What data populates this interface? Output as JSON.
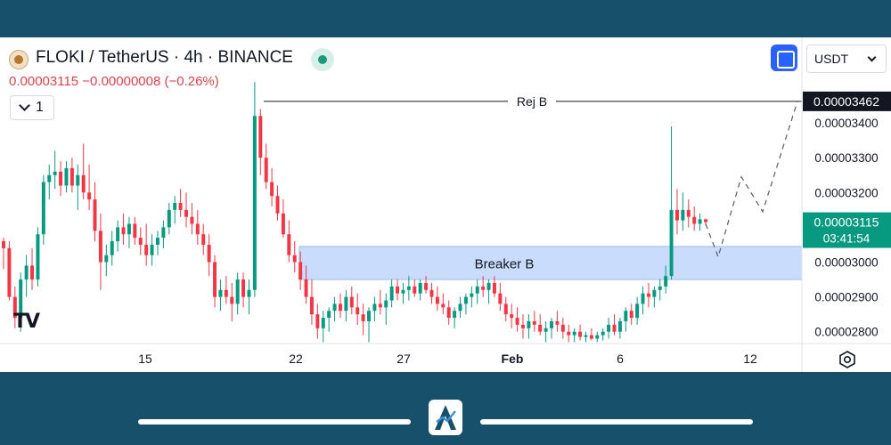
{
  "header": {
    "symbol": "FLOKI / TetherUS · 4h · BINANCE",
    "quote_line": "0.00003115 −0.00000008 (−0.26%)",
    "interval_label": "1",
    "currency": "USDT"
  },
  "colors": {
    "up": "#089981",
    "down": "#f23645",
    "zone_fill": "#c9dcfb",
    "zone_border": "#9cbcf2",
    "last_price_bg": "#089981",
    "rej_label_bg": "#131722",
    "frame_bg": "#17506a"
  },
  "icons": [
    "coin-logo-icon",
    "status-dot-icon",
    "chevron-down-icon",
    "fullscreen-icon",
    "tradingview-logo-icon",
    "settings-icon",
    "app-logo-icon"
  ],
  "chart_data": {
    "type": "candlestick",
    "y_axis": {
      "ticks": [
        3.4e-05,
        3.3e-05,
        3.2e-05,
        3e-05,
        2.9e-05,
        2.8e-05
      ],
      "tick_labels": [
        "0.00003400",
        "0.00003300",
        "0.00003200",
        "0.00003000",
        "0.00002900",
        "0.00002800"
      ],
      "range": [
        2.766e-05,
        3.518e-05
      ]
    },
    "x_axis": {
      "tick_labels": [
        "15",
        "22",
        "27",
        "Feb",
        "6",
        "12"
      ]
    },
    "last_price": {
      "value": 3.115e-05,
      "label": "0.00003115",
      "countdown": "03:41:54"
    },
    "rejection_level": {
      "name": "Rej B",
      "value": 3.462e-05,
      "label": "0.00003462"
    },
    "breaker_zone": {
      "name": "Breaker B",
      "low": 2.95e-05,
      "high": 3.045e-05
    },
    "projection": [
      3.11e-05,
      3.015e-05,
      3.245e-05,
      3.145e-05,
      3.462e-05
    ],
    "candles": [
      {
        "o": 3.06e-05,
        "h": 3.07e-05,
        "l": 2.98e-05,
        "c": 3.04e-05
      },
      {
        "o": 3.04e-05,
        "h": 3.06e-05,
        "l": 2.89e-05,
        "c": 2.9e-05
      },
      {
        "o": 2.9e-05,
        "h": 2.93e-05,
        "l": 2.81e-05,
        "c": 2.84e-05
      },
      {
        "o": 2.84e-05,
        "h": 2.97e-05,
        "l": 2.8e-05,
        "c": 2.95e-05
      },
      {
        "o": 2.95e-05,
        "h": 3.02e-05,
        "l": 2.9e-05,
        "c": 2.99e-05
      },
      {
        "o": 2.99e-05,
        "h": 3.04e-05,
        "l": 2.92e-05,
        "c": 2.95e-05
      },
      {
        "o": 2.95e-05,
        "h": 3.1e-05,
        "l": 2.93e-05,
        "c": 3.08e-05
      },
      {
        "o": 3.08e-05,
        "h": 3.25e-05,
        "l": 3.05e-05,
        "c": 3.23e-05
      },
      {
        "o": 3.23e-05,
        "h": 3.28e-05,
        "l": 3.18e-05,
        "c": 3.25e-05
      },
      {
        "o": 3.25e-05,
        "h": 3.32e-05,
        "l": 3.21e-05,
        "c": 3.26e-05
      },
      {
        "o": 3.26e-05,
        "h": 3.29e-05,
        "l": 3.19e-05,
        "c": 3.22e-05
      },
      {
        "o": 3.22e-05,
        "h": 3.29e-05,
        "l": 3.2e-05,
        "c": 3.27e-05
      },
      {
        "o": 3.27e-05,
        "h": 3.3e-05,
        "l": 3.2e-05,
        "c": 3.22e-05
      },
      {
        "o": 3.22e-05,
        "h": 3.28e-05,
        "l": 3.15e-05,
        "c": 3.25e-05
      },
      {
        "o": 3.25e-05,
        "h": 3.34e-05,
        "l": 3.18e-05,
        "c": 3.2e-05
      },
      {
        "o": 3.2e-05,
        "h": 3.28e-05,
        "l": 3.15e-05,
        "c": 3.18e-05
      },
      {
        "o": 3.18e-05,
        "h": 3.23e-05,
        "l": 3.06e-05,
        "c": 3.09e-05
      },
      {
        "o": 3.09e-05,
        "h": 3.14e-05,
        "l": 2.92e-05,
        "c": 3e-05
      },
      {
        "o": 3e-05,
        "h": 3.05e-05,
        "l": 2.96e-05,
        "c": 3.02e-05
      },
      {
        "o": 3.02e-05,
        "h": 3.09e-05,
        "l": 2.99e-05,
        "c": 3.06e-05
      },
      {
        "o": 3.06e-05,
        "h": 3.12e-05,
        "l": 3.03e-05,
        "c": 3.1e-05
      },
      {
        "o": 3.1e-05,
        "h": 3.14e-05,
        "l": 3.05e-05,
        "c": 3.08e-05
      },
      {
        "o": 3.08e-05,
        "h": 3.13e-05,
        "l": 3.04e-05,
        "c": 3.11e-05
      },
      {
        "o": 3.11e-05,
        "h": 3.13e-05,
        "l": 3.05e-05,
        "c": 3.07e-05
      },
      {
        "o": 3.07e-05,
        "h": 3.1e-05,
        "l": 3.02e-05,
        "c": 3.05e-05
      },
      {
        "o": 3.05e-05,
        "h": 3.11e-05,
        "l": 2.99e-05,
        "c": 3.02e-05
      },
      {
        "o": 3.02e-05,
        "h": 3.08e-05,
        "l": 2.99e-05,
        "c": 3.05e-05
      },
      {
        "o": 3.05e-05,
        "h": 3.09e-05,
        "l": 3.02e-05,
        "c": 3.07e-05
      },
      {
        "o": 3.07e-05,
        "h": 3.12e-05,
        "l": 3.04e-05,
        "c": 3.1e-05
      },
      {
        "o": 3.1e-05,
        "h": 3.17e-05,
        "l": 3.08e-05,
        "c": 3.15e-05
      },
      {
        "o": 3.15e-05,
        "h": 3.19e-05,
        "l": 3.11e-05,
        "c": 3.17e-05
      },
      {
        "o": 3.17e-05,
        "h": 3.21e-05,
        "l": 3.13e-05,
        "c": 3.15e-05
      },
      {
        "o": 3.15e-05,
        "h": 3.2e-05,
        "l": 3.1e-05,
        "c": 3.13e-05
      },
      {
        "o": 3.13e-05,
        "h": 3.17e-05,
        "l": 3.08e-05,
        "c": 3.11e-05
      },
      {
        "o": 3.11e-05,
        "h": 3.15e-05,
        "l": 3.05e-05,
        "c": 3.08e-05
      },
      {
        "o": 3.08e-05,
        "h": 3.11e-05,
        "l": 3.02e-05,
        "c": 3.05e-05
      },
      {
        "o": 3.05e-05,
        "h": 3.08e-05,
        "l": 2.96e-05,
        "c": 3e-05
      },
      {
        "o": 3e-05,
        "h": 3.02e-05,
        "l": 2.87e-05,
        "c": 2.9e-05
      },
      {
        "o": 2.9e-05,
        "h": 2.95e-05,
        "l": 2.86e-05,
        "c": 2.92e-05
      },
      {
        "o": 2.92e-05,
        "h": 2.96e-05,
        "l": 2.88e-05,
        "c": 2.9e-05
      },
      {
        "o": 2.9e-05,
        "h": 2.94e-05,
        "l": 2.83e-05,
        "c": 2.88e-05
      },
      {
        "o": 2.88e-05,
        "h": 2.97e-05,
        "l": 2.85e-05,
        "c": 2.95e-05
      },
      {
        "o": 2.95e-05,
        "h": 2.97e-05,
        "l": 2.87e-05,
        "c": 2.9e-05
      },
      {
        "o": 2.9e-05,
        "h": 2.95e-05,
        "l": 2.85e-05,
        "c": 2.92e-05
      },
      {
        "o": 2.92e-05,
        "h": 3.518e-05,
        "l": 2.9e-05,
        "c": 3.42e-05
      },
      {
        "o": 3.42e-05,
        "h": 3.44e-05,
        "l": 3.25e-05,
        "c": 3.3e-05
      },
      {
        "o": 3.3e-05,
        "h": 3.34e-05,
        "l": 3.21e-05,
        "c": 3.23e-05
      },
      {
        "o": 3.23e-05,
        "h": 3.27e-05,
        "l": 3.16e-05,
        "c": 3.19e-05
      },
      {
        "o": 3.19e-05,
        "h": 3.22e-05,
        "l": 3.12e-05,
        "c": 3.14e-05
      },
      {
        "o": 3.14e-05,
        "h": 3.18e-05,
        "l": 3.07e-05,
        "c": 3.08e-05
      },
      {
        "o": 3.08e-05,
        "h": 3.12e-05,
        "l": 3e-05,
        "c": 3.02e-05
      },
      {
        "o": 3.02e-05,
        "h": 3.06e-05,
        "l": 2.97e-05,
        "c": 3e-05
      },
      {
        "o": 3e-05,
        "h": 3.03e-05,
        "l": 2.92e-05,
        "c": 2.95e-05
      },
      {
        "o": 2.95e-05,
        "h": 2.99e-05,
        "l": 2.88e-05,
        "c": 2.9e-05
      },
      {
        "o": 2.9e-05,
        "h": 2.95e-05,
        "l": 2.82e-05,
        "c": 2.85e-05
      },
      {
        "o": 2.85e-05,
        "h": 2.88e-05,
        "l": 2.78e-05,
        "c": 2.81e-05
      },
      {
        "o": 2.81e-05,
        "h": 2.86e-05,
        "l": 2.77e-05,
        "c": 2.84e-05
      },
      {
        "o": 2.84e-05,
        "h": 2.87e-05,
        "l": 2.8e-05,
        "c": 2.86e-05
      },
      {
        "o": 2.86e-05,
        "h": 2.9e-05,
        "l": 2.83e-05,
        "c": 2.88e-05
      },
      {
        "o": 2.88e-05,
        "h": 2.91e-05,
        "l": 2.84e-05,
        "c": 2.86e-05
      },
      {
        "o": 2.86e-05,
        "h": 2.92e-05,
        "l": 2.83e-05,
        "c": 2.9e-05
      },
      {
        "o": 2.9e-05,
        "h": 2.93e-05,
        "l": 2.85e-05,
        "c": 2.87e-05
      },
      {
        "o": 2.87e-05,
        "h": 2.91e-05,
        "l": 2.82e-05,
        "c": 2.85e-05
      },
      {
        "o": 2.85e-05,
        "h": 2.88e-05,
        "l": 2.79e-05,
        "c": 2.83e-05
      },
      {
        "o": 2.83e-05,
        "h": 2.87e-05,
        "l": 2.77e-05,
        "c": 2.86e-05
      },
      {
        "o": 2.86e-05,
        "h": 2.9e-05,
        "l": 2.83e-05,
        "c": 2.88e-05
      },
      {
        "o": 2.88e-05,
        "h": 2.92e-05,
        "l": 2.85e-05,
        "c": 2.87e-05
      },
      {
        "o": 2.87e-05,
        "h": 2.91e-05,
        "l": 2.82e-05,
        "c": 2.89e-05
      },
      {
        "o": 2.89e-05,
        "h": 2.95e-05,
        "l": 2.87e-05,
        "c": 2.93e-05
      },
      {
        "o": 2.93e-05,
        "h": 2.95e-05,
        "l": 2.89e-05,
        "c": 2.91e-05
      },
      {
        "o": 2.91e-05,
        "h": 2.94e-05,
        "l": 2.88e-05,
        "c": 2.92e-05
      },
      {
        "o": 2.92e-05,
        "h": 2.96e-05,
        "l": 2.89e-05,
        "c": 2.93e-05
      },
      {
        "o": 2.93e-05,
        "h": 2.95e-05,
        "l": 2.9e-05,
        "c": 2.91e-05
      },
      {
        "o": 2.91e-05,
        "h": 2.95e-05,
        "l": 2.89e-05,
        "c": 2.94e-05
      },
      {
        "o": 2.94e-05,
        "h": 2.96e-05,
        "l": 2.91e-05,
        "c": 2.92e-05
      },
      {
        "o": 2.92e-05,
        "h": 2.94e-05,
        "l": 2.88e-05,
        "c": 2.9e-05
      },
      {
        "o": 2.9e-05,
        "h": 2.93e-05,
        "l": 2.86e-05,
        "c": 2.88e-05
      },
      {
        "o": 2.88e-05,
        "h": 2.91e-05,
        "l": 2.85e-05,
        "c": 2.87e-05
      },
      {
        "o": 2.87e-05,
        "h": 2.89e-05,
        "l": 2.82e-05,
        "c": 2.84e-05
      },
      {
        "o": 2.84e-05,
        "h": 2.87e-05,
        "l": 2.81e-05,
        "c": 2.86e-05
      },
      {
        "o": 2.86e-05,
        "h": 2.9e-05,
        "l": 2.84e-05,
        "c": 2.88e-05
      },
      {
        "o": 2.88e-05,
        "h": 2.91e-05,
        "l": 2.85e-05,
        "c": 2.9e-05
      },
      {
        "o": 2.9e-05,
        "h": 2.93e-05,
        "l": 2.87e-05,
        "c": 2.91e-05
      },
      {
        "o": 2.91e-05,
        "h": 2.95e-05,
        "l": 2.88e-05,
        "c": 2.93e-05
      },
      {
        "o": 2.93e-05,
        "h": 2.96e-05,
        "l": 2.9e-05,
        "c": 2.92e-05
      },
      {
        "o": 2.92e-05,
        "h": 2.95e-05,
        "l": 2.88e-05,
        "c": 2.94e-05
      },
      {
        "o": 2.94e-05,
        "h": 2.96e-05,
        "l": 2.9e-05,
        "c": 2.91e-05
      },
      {
        "o": 2.91e-05,
        "h": 2.94e-05,
        "l": 2.86e-05,
        "c": 2.88e-05
      },
      {
        "o": 2.88e-05,
        "h": 2.9e-05,
        "l": 2.83e-05,
        "c": 2.85e-05
      },
      {
        "o": 2.85e-05,
        "h": 2.88e-05,
        "l": 2.81e-05,
        "c": 2.84e-05
      },
      {
        "o": 2.84e-05,
        "h": 2.87e-05,
        "l": 2.8e-05,
        "c": 2.82e-05
      },
      {
        "o": 2.82e-05,
        "h": 2.85e-05,
        "l": 2.78e-05,
        "c": 2.81e-05
      },
      {
        "o": 2.81e-05,
        "h": 2.85e-05,
        "l": 2.78e-05,
        "c": 2.83e-05
      },
      {
        "o": 2.83e-05,
        "h": 2.86e-05,
        "l": 2.8e-05,
        "c": 2.82e-05
      },
      {
        "o": 2.82e-05,
        "h": 2.85e-05,
        "l": 2.79e-05,
        "c": 2.8e-05
      },
      {
        "o": 2.8e-05,
        "h": 2.83e-05,
        "l": 2.77e-05,
        "c": 2.81e-05
      },
      {
        "o": 2.81e-05,
        "h": 2.84e-05,
        "l": 2.78e-05,
        "c": 2.83e-05
      },
      {
        "o": 2.83e-05,
        "h": 2.86e-05,
        "l": 2.8e-05,
        "c": 2.82e-05
      },
      {
        "o": 2.82e-05,
        "h": 2.84e-05,
        "l": 2.78e-05,
        "c": 2.8e-05
      },
      {
        "o": 2.8e-05,
        "h": 2.82e-05,
        "l": 2.77e-05,
        "c": 2.79e-05
      },
      {
        "o": 2.79e-05,
        "h": 2.81e-05,
        "l": 2.77e-05,
        "c": 2.8e-05
      },
      {
        "o": 2.8e-05,
        "h": 2.82e-05,
        "l": 2.775e-05,
        "c": 2.785e-05
      },
      {
        "o": 2.785e-05,
        "h": 2.8e-05,
        "l": 2.77e-05,
        "c": 2.79e-05
      },
      {
        "o": 2.79e-05,
        "h": 2.81e-05,
        "l": 2.775e-05,
        "c": 2.78e-05
      },
      {
        "o": 2.78e-05,
        "h": 2.8e-05,
        "l": 2.77e-05,
        "c": 2.79e-05
      },
      {
        "o": 2.79e-05,
        "h": 2.81e-05,
        "l": 2.775e-05,
        "c": 2.8e-05
      },
      {
        "o": 2.8e-05,
        "h": 2.84e-05,
        "l": 2.78e-05,
        "c": 2.82e-05
      },
      {
        "o": 2.82e-05,
        "h": 2.85e-05,
        "l": 2.79e-05,
        "c": 2.8e-05
      },
      {
        "o": 2.8e-05,
        "h": 2.84e-05,
        "l": 2.78e-05,
        "c": 2.83e-05
      },
      {
        "o": 2.83e-05,
        "h": 2.87e-05,
        "l": 2.8e-05,
        "c": 2.86e-05
      },
      {
        "o": 2.86e-05,
        "h": 2.88e-05,
        "l": 2.82e-05,
        "c": 2.84e-05
      },
      {
        "o": 2.84e-05,
        "h": 2.9e-05,
        "l": 2.82e-05,
        "c": 2.88e-05
      },
      {
        "o": 2.88e-05,
        "h": 2.93e-05,
        "l": 2.85e-05,
        "c": 2.91e-05
      },
      {
        "o": 2.91e-05,
        "h": 2.94e-05,
        "l": 2.87e-05,
        "c": 2.9e-05
      },
      {
        "o": 2.9e-05,
        "h": 2.93e-05,
        "l": 2.87e-05,
        "c": 2.92e-05
      },
      {
        "o": 2.92e-05,
        "h": 2.95e-05,
        "l": 2.89e-05,
        "c": 2.93e-05
      },
      {
        "o": 2.93e-05,
        "h": 2.99e-05,
        "l": 2.91e-05,
        "c": 2.96e-05
      },
      {
        "o": 2.96e-05,
        "h": 3.39e-05,
        "l": 2.95e-05,
        "c": 3.15e-05
      },
      {
        "o": 3.15e-05,
        "h": 3.21e-05,
        "l": 3.08e-05,
        "c": 3.12e-05
      },
      {
        "o": 3.12e-05,
        "h": 3.2e-05,
        "l": 3.09e-05,
        "c": 3.15e-05
      },
      {
        "o": 3.15e-05,
        "h": 3.18e-05,
        "l": 3.1e-05,
        "c": 3.13e-05
      },
      {
        "o": 3.13e-05,
        "h": 3.16e-05,
        "l": 3.09e-05,
        "c": 3.11e-05
      },
      {
        "o": 3.11e-05,
        "h": 3.14e-05,
        "l": 3.09e-05,
        "c": 3.123e-05
      },
      {
        "o": 3.123e-05,
        "h": 3.125e-05,
        "l": 3.105e-05,
        "c": 3.115e-05
      }
    ]
  }
}
